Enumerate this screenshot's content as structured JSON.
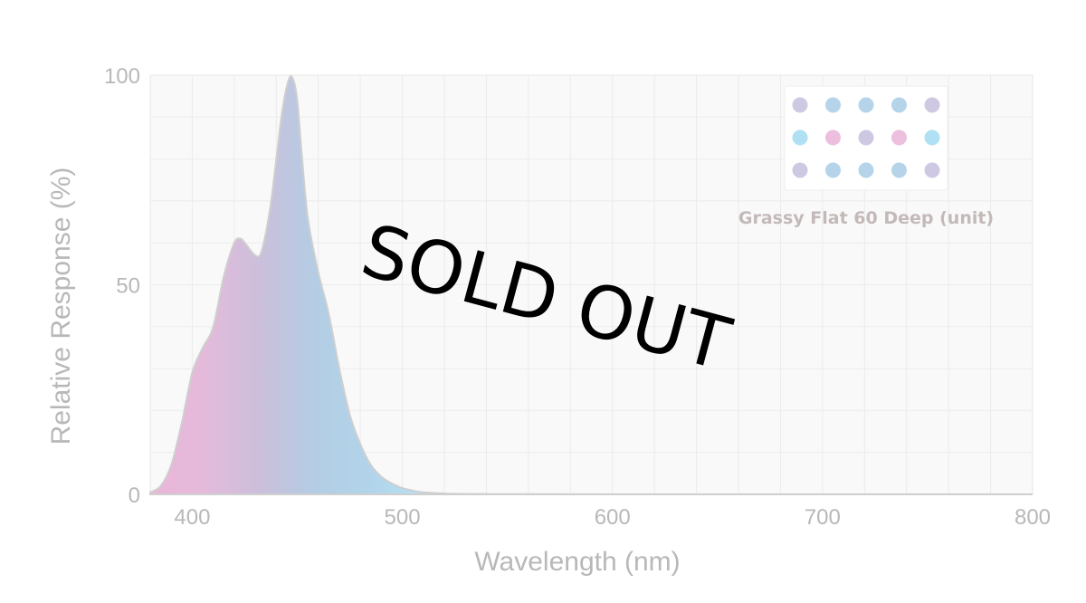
{
  "chart_data": {
    "type": "area",
    "title": "",
    "xlabel": "Wavelength (nm)",
    "ylabel": "Relative Response (%)",
    "xlim": [
      380,
      800
    ],
    "ylim": [
      0,
      100
    ],
    "x_ticks": [
      400,
      500,
      600,
      700,
      800
    ],
    "y_ticks": [
      0,
      50,
      100
    ],
    "grid": true,
    "legend_position": "top-right",
    "series": [
      {
        "name": "Grassy Flat 60 Deep (unit)",
        "x": [
          380,
          385,
          390,
          395,
          400,
          405,
          410,
          415,
          420,
          423,
          425,
          430,
          433,
          437,
          440,
          443,
          446,
          448,
          450,
          452,
          455,
          460,
          465,
          470,
          475,
          480,
          485,
          490,
          495,
          500,
          505,
          510,
          520,
          530,
          550,
          600,
          700,
          800
        ],
        "y": [
          0.5,
          2,
          7,
          17,
          29,
          35,
          40,
          52,
          60,
          61,
          60,
          57,
          58,
          68,
          80,
          92,
          99,
          99,
          94,
          82,
          66,
          53,
          43,
          30,
          19,
          12,
          7,
          4.2,
          2.6,
          1.5,
          0.9,
          0.5,
          0.2,
          0.1,
          0.05,
          0,
          0,
          0
        ]
      }
    ],
    "gradient_colors": [
      "#eab5d8",
      "#e4badb",
      "#cbbfdb",
      "#b3cde4",
      "#b1d4ea",
      "#b6e2f4"
    ],
    "legend_dot_colors": [
      [
        "#cfc8e3",
        "#b5d4ea",
        "#b5d4ea",
        "#b5d4ea",
        "#cfc8e3"
      ],
      [
        "#afe0f3",
        "#ecbfdf",
        "#cfc8e3",
        "#ecbfdf",
        "#afe0f3"
      ],
      [
        "#cfc8e3",
        "#b5d4ea",
        "#b5d4ea",
        "#b5d4ea",
        "#cfc8e3"
      ]
    ]
  },
  "overlay": {
    "stamp_text": "SOLD OUT"
  }
}
